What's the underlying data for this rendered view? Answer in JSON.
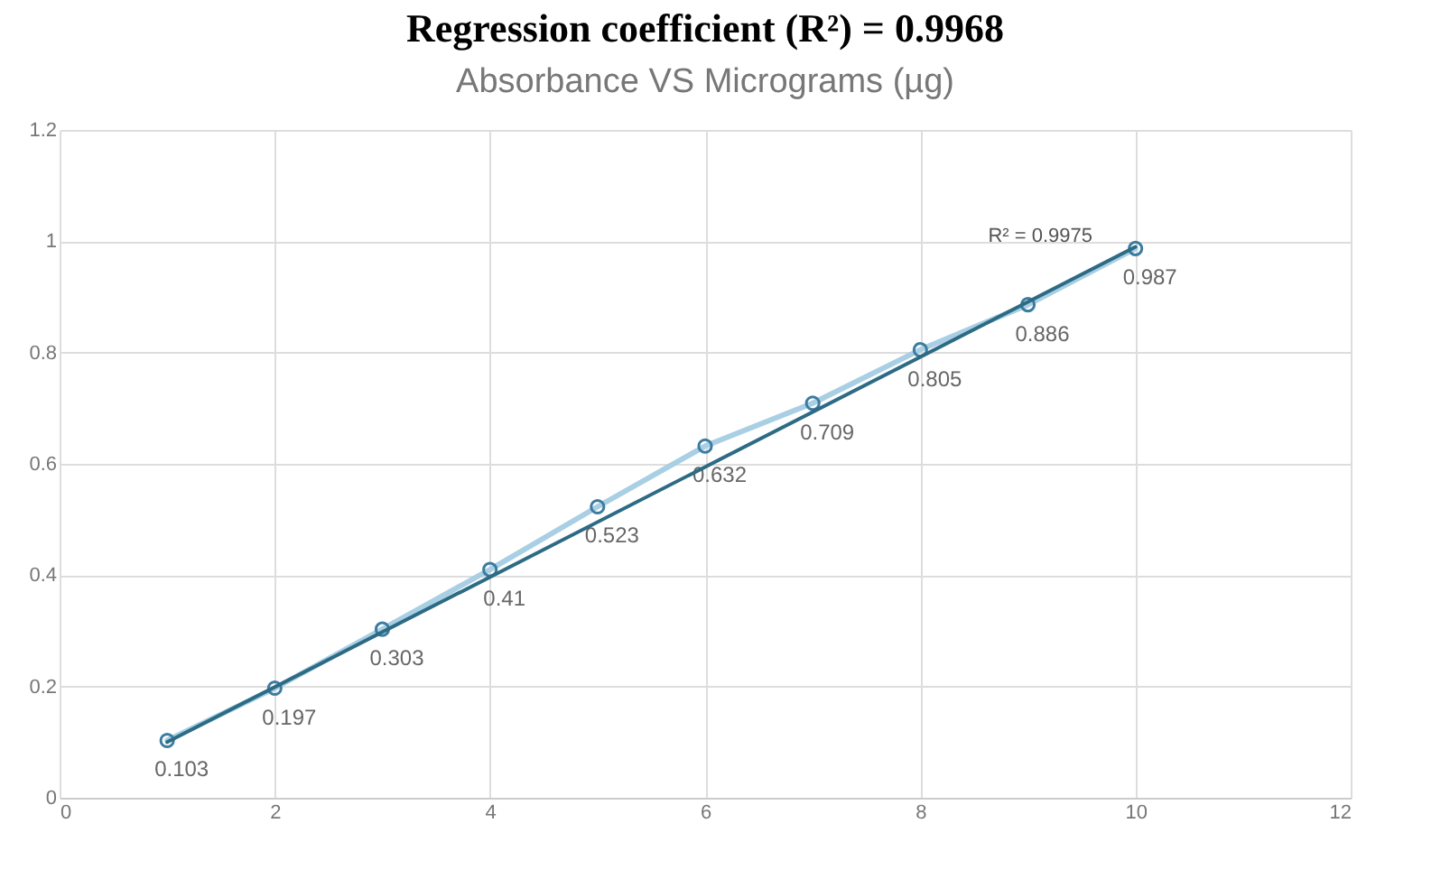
{
  "chart_data": {
    "type": "line",
    "title": "Regression coefficient (R²) = 0.9968",
    "subtitle": "Absorbance VS Micrograms (µg)",
    "x": [
      1,
      2,
      3,
      4,
      5,
      6,
      7,
      8,
      9,
      10
    ],
    "series": [
      {
        "color": "#a9cfe4",
        "values": [
          0.103,
          0.197,
          0.303,
          0.41,
          0.523,
          0.632,
          0.709,
          0.805,
          0.886,
          0.987
        ],
        "value_labels": [
          "0.103",
          "0.197",
          "0.303",
          "0.41",
          "0.523",
          "0.632",
          "0.709",
          "0.805",
          "0.886",
          "0.987"
        ]
      },
      {
        "type": "line",
        "color": "#2d6b85",
        "x": [
          1,
          10
        ],
        "values": [
          0.1,
          0.99
        ]
      }
    ],
    "marker": "circle",
    "grid": true,
    "xlim": [
      0,
      12
    ],
    "xticks": [
      0,
      2,
      4,
      6,
      8,
      10,
      12
    ],
    "ylim": [
      0,
      1.2
    ],
    "yticks": [
      0,
      0.2,
      0.4,
      0.6,
      0.8,
      1,
      1.2
    ],
    "annotations": [
      "R² = 0.9975"
    ]
  }
}
